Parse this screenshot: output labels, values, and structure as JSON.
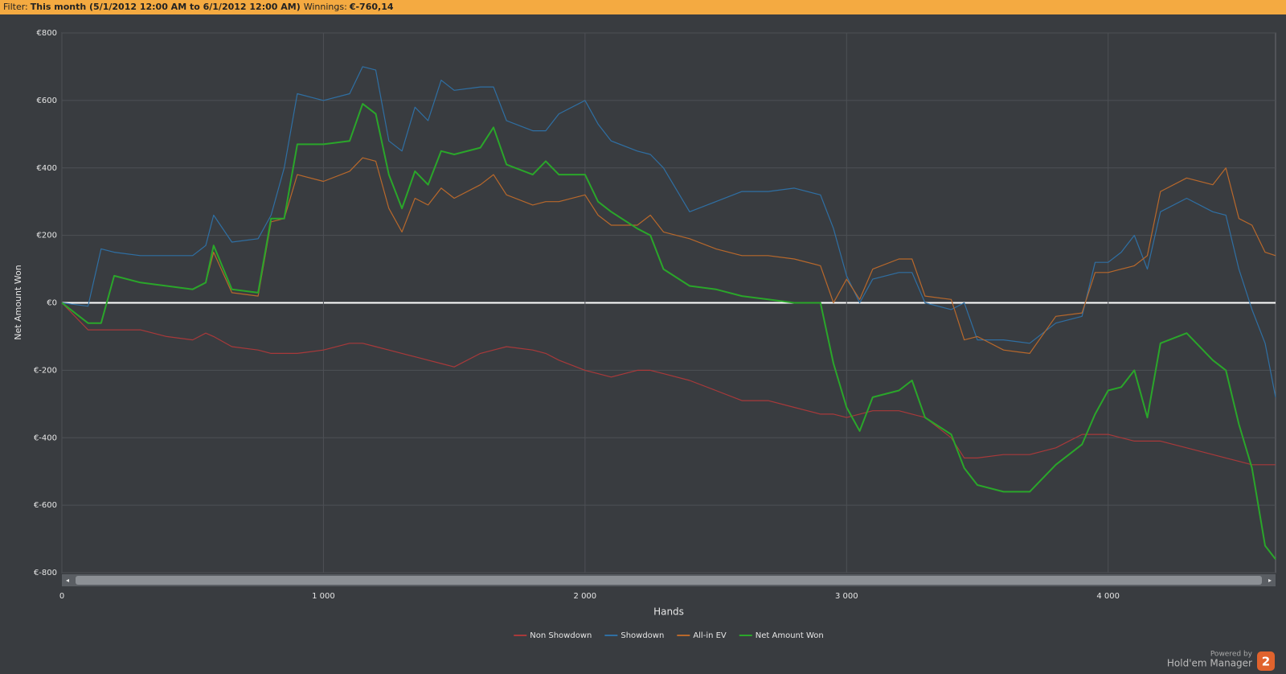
{
  "filter": {
    "label": "Filter:",
    "value": "This month (5/1/2012 12:00 AM to 6/1/2012 12:00 AM)",
    "winnings_label": "Winnings:",
    "winnings": "€-760,14"
  },
  "chart_data": {
    "type": "line",
    "xlabel": "Hands",
    "ylabel": "Net Amount Won",
    "x": [
      0,
      100,
      150,
      200,
      300,
      400,
      500,
      550,
      580,
      650,
      750,
      800,
      850,
      900,
      1000,
      1100,
      1150,
      1200,
      1250,
      1300,
      1350,
      1400,
      1450,
      1500,
      1600,
      1650,
      1700,
      1800,
      1850,
      1900,
      2000,
      2050,
      2100,
      2200,
      2250,
      2300,
      2400,
      2500,
      2600,
      2700,
      2800,
      2900,
      2950,
      3000,
      3050,
      3100,
      3200,
      3250,
      3300,
      3400,
      3450,
      3500,
      3600,
      3700,
      3800,
      3900,
      3950,
      4000,
      4050,
      4100,
      4150,
      4200,
      4300,
      4400,
      4450,
      4500,
      4550,
      4600,
      4640
    ],
    "series": [
      {
        "name": "Non Showdown",
        "color": "#a8393a",
        "width": 1.2,
        "values": [
          0,
          -80,
          -80,
          -80,
          -80,
          -100,
          -110,
          -90,
          -100,
          -130,
          -140,
          -150,
          -150,
          -150,
          -140,
          -120,
          -120,
          -130,
          -140,
          -150,
          -160,
          -170,
          -180,
          -190,
          -150,
          -140,
          -130,
          -140,
          -150,
          -170,
          -200,
          -210,
          -220,
          -200,
          -200,
          -210,
          -230,
          -260,
          -290,
          -290,
          -310,
          -330,
          -330,
          -340,
          -330,
          -320,
          -320,
          -330,
          -340,
          -400,
          -460,
          -460,
          -450,
          -450,
          -430,
          -390,
          -390,
          -390,
          -400,
          -410,
          -410,
          -410,
          -430,
          -450,
          -460,
          -470,
          -480,
          -480,
          -480
        ]
      },
      {
        "name": "Showdown",
        "color": "#2f6fa3",
        "width": 1.2,
        "values": [
          0,
          -10,
          160,
          150,
          140,
          140,
          140,
          170,
          260,
          180,
          190,
          260,
          400,
          620,
          600,
          620,
          700,
          690,
          480,
          450,
          580,
          540,
          660,
          630,
          640,
          640,
          540,
          510,
          510,
          560,
          600,
          530,
          480,
          450,
          440,
          400,
          270,
          300,
          330,
          330,
          340,
          320,
          220,
          80,
          0,
          70,
          90,
          90,
          0,
          -20,
          0,
          -110,
          -110,
          -120,
          -60,
          -40,
          120,
          120,
          150,
          200,
          100,
          270,
          310,
          270,
          260,
          100,
          -20,
          -120,
          -280
        ]
      },
      {
        "name": "All-in EV",
        "color": "#b8682b",
        "width": 1.2,
        "values": [
          0,
          -60,
          -60,
          80,
          60,
          50,
          40,
          60,
          150,
          30,
          20,
          240,
          250,
          380,
          360,
          390,
          430,
          420,
          280,
          210,
          310,
          290,
          340,
          310,
          350,
          380,
          320,
          290,
          300,
          300,
          320,
          260,
          230,
          230,
          260,
          210,
          190,
          160,
          140,
          140,
          130,
          110,
          0,
          70,
          10,
          100,
          130,
          130,
          20,
          10,
          -110,
          -100,
          -140,
          -150,
          -40,
          -30,
          90,
          90,
          100,
          110,
          140,
          330,
          370,
          350,
          400,
          250,
          230,
          150,
          140
        ]
      },
      {
        "name": "Net Amount Won",
        "color": "#2aa62a",
        "width": 2,
        "values": [
          0,
          -60,
          -60,
          80,
          60,
          50,
          40,
          60,
          170,
          40,
          30,
          250,
          250,
          470,
          470,
          480,
          590,
          560,
          380,
          280,
          390,
          350,
          450,
          440,
          460,
          520,
          410,
          380,
          420,
          380,
          380,
          300,
          270,
          220,
          200,
          100,
          50,
          40,
          20,
          10,
          0,
          0,
          -180,
          -310,
          -380,
          -280,
          -260,
          -230,
          -340,
          -390,
          -490,
          -540,
          -560,
          -560,
          -480,
          -420,
          -330,
          -260,
          -250,
          -200,
          -340,
          -120,
          -90,
          -170,
          -200,
          -360,
          -490,
          -720,
          -760
        ]
      }
    ],
    "xlim": [
      0,
      4640
    ],
    "ylim": [
      -800,
      800
    ],
    "xticks": [
      0,
      {
        "value": 1000,
        "label": "1 000"
      },
      {
        "value": 2000,
        "label": "2 000"
      },
      {
        "value": 3000,
        "label": "3 000"
      },
      {
        "value": 4000,
        "label": "4 000"
      }
    ],
    "yticks": [
      {
        "value": -800,
        "label": "€-800"
      },
      {
        "value": -600,
        "label": "€-600"
      },
      {
        "value": -400,
        "label": "€-400"
      },
      {
        "value": -200,
        "label": "€-200"
      },
      {
        "value": 0,
        "label": "€0"
      },
      {
        "value": 200,
        "label": "€200"
      },
      {
        "value": 400,
        "label": "€400"
      },
      {
        "value": 600,
        "label": "€600"
      },
      {
        "value": 800,
        "label": "€800"
      }
    ],
    "grid": true,
    "legend": "bottom"
  },
  "footer": {
    "powered_by": "Powered by",
    "product": "Hold'em Manager",
    "version": "2"
  }
}
